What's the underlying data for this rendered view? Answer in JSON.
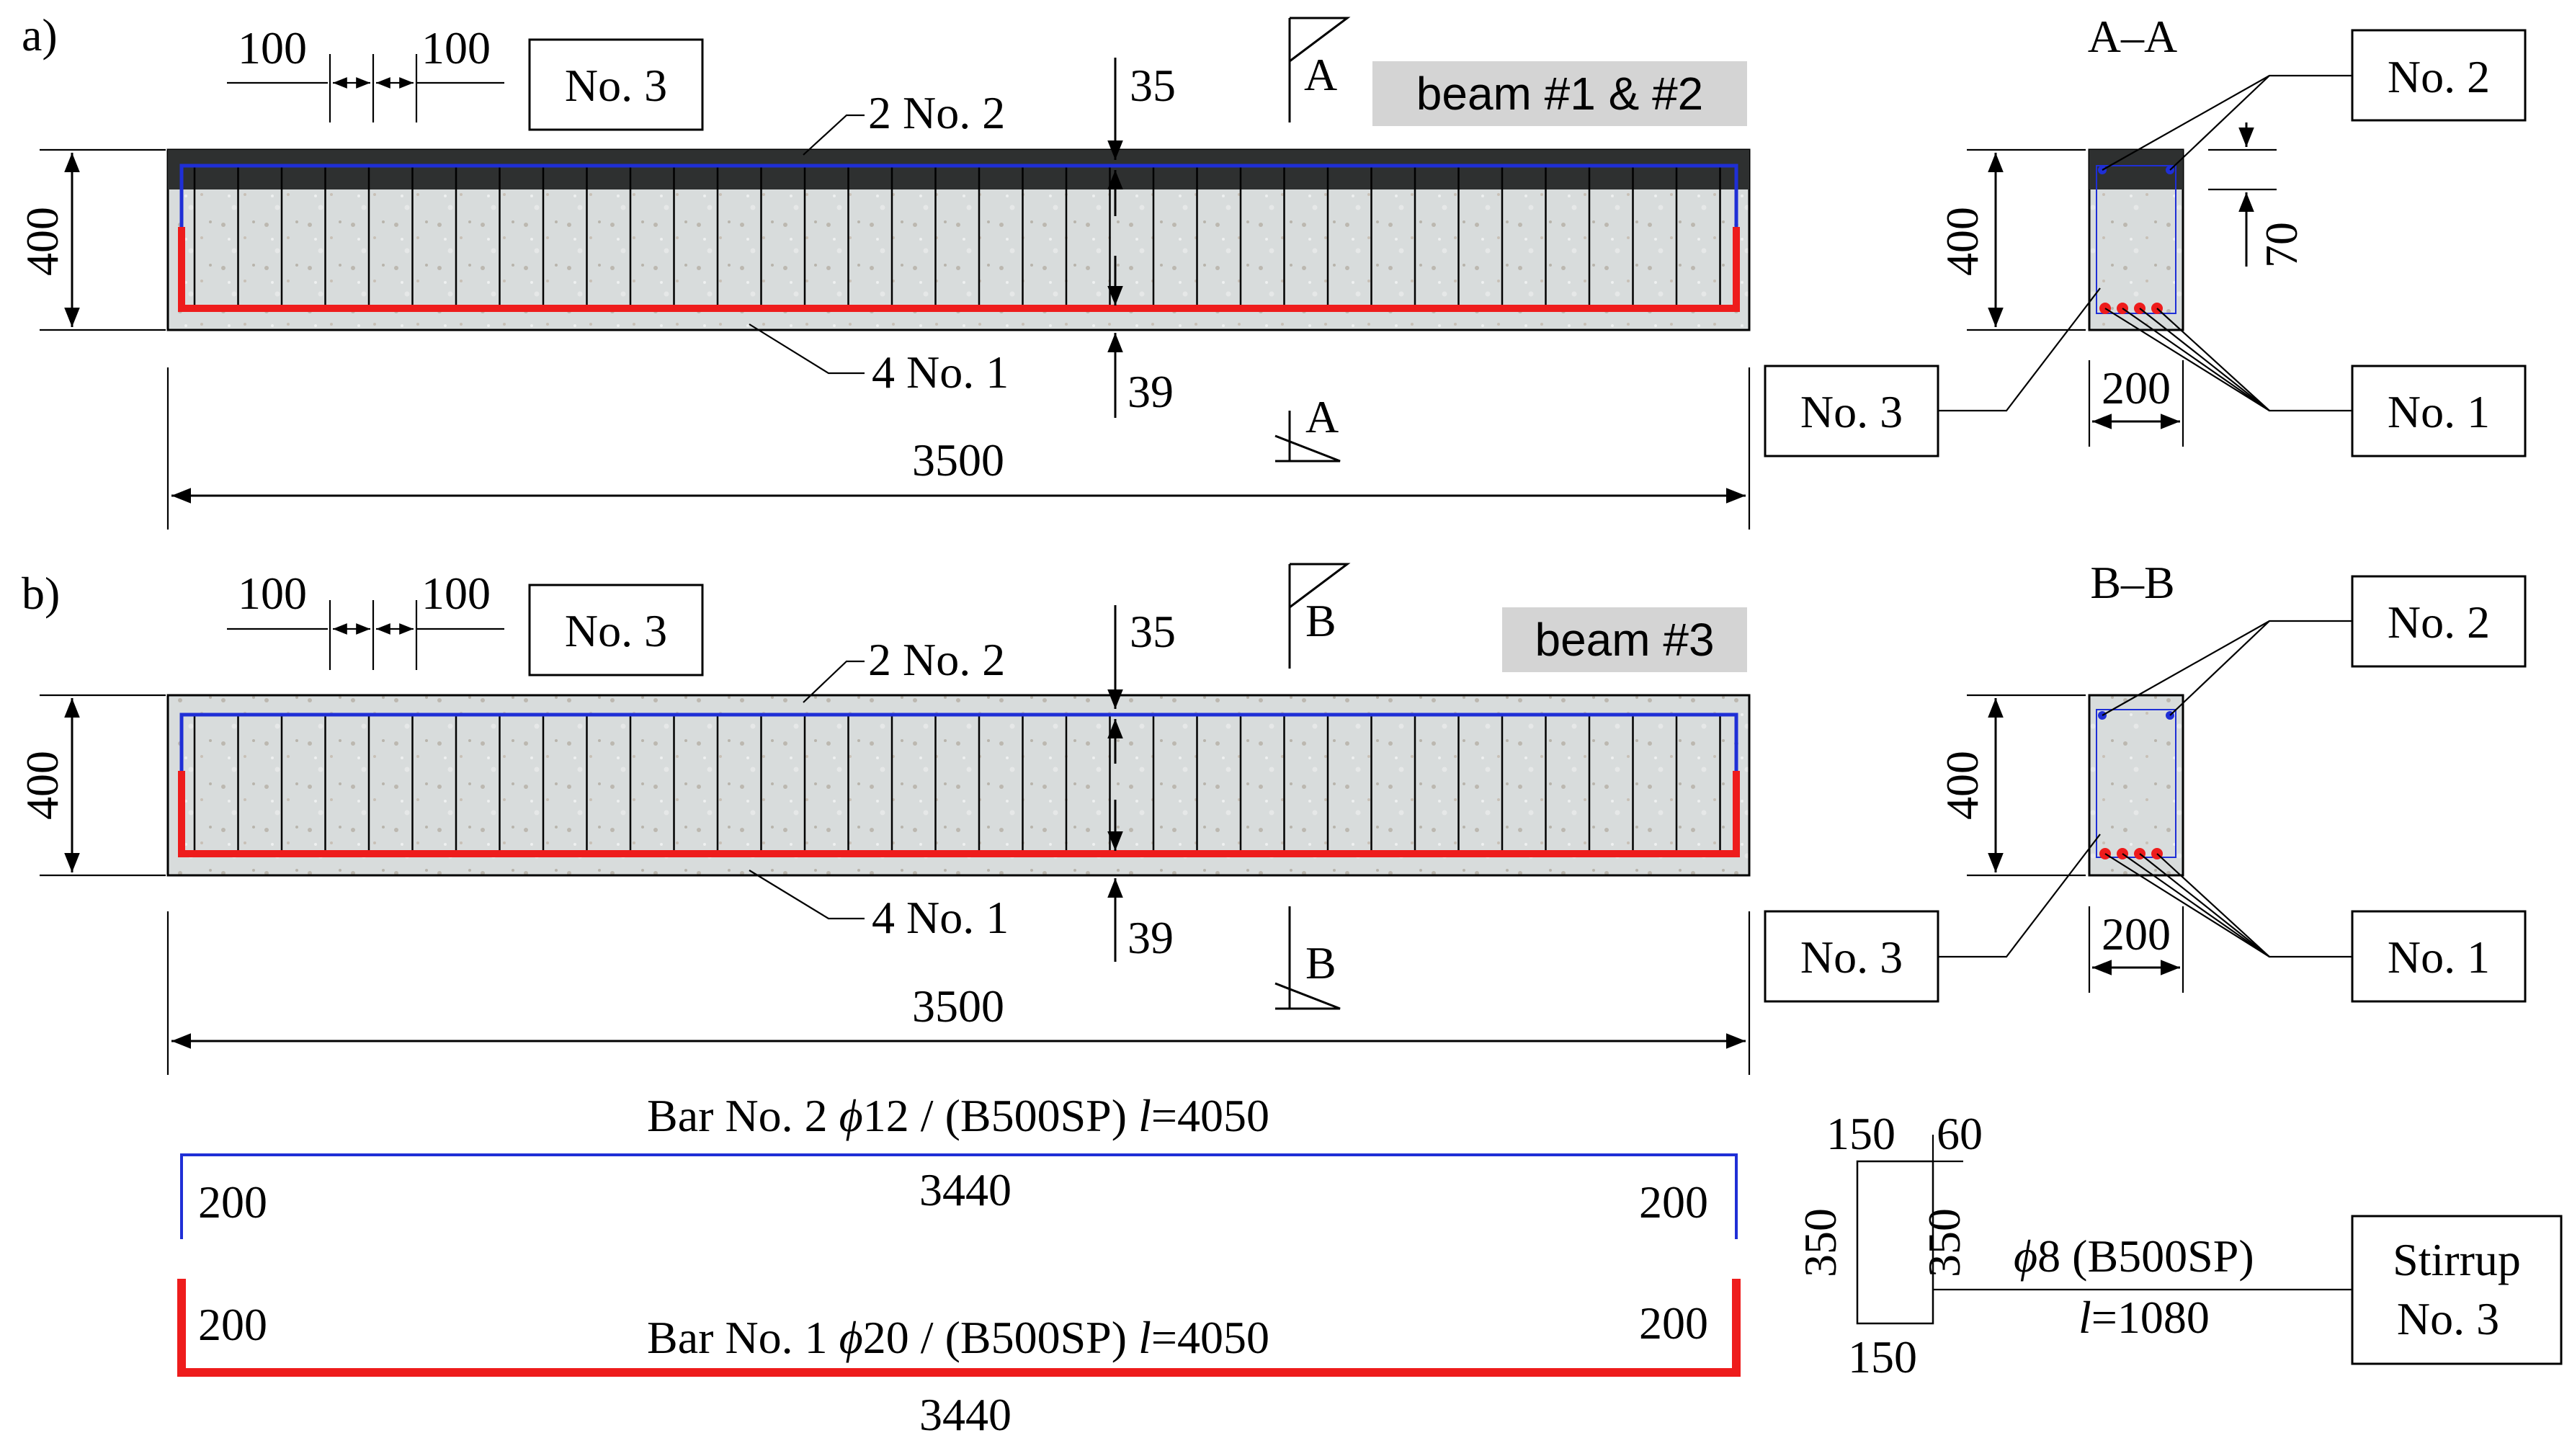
{
  "panel_a": {
    "label": "a)",
    "spacing_left": "100",
    "spacing_right": "100",
    "stirrup_box": "No. 3",
    "top_dim": "35",
    "bottom_dim": "39",
    "section_top": "A",
    "section_bottom": "A",
    "beam_tag": "beam #1 & #2",
    "top_bars": "2 No. 2",
    "bottom_bars": "4 No. 1",
    "height_dim": "400",
    "length_dim": "3500",
    "section_title": "A–A",
    "sec_no2": "No. 2",
    "sec_no3": "No. 3",
    "sec_no1": "No. 1",
    "sec_height": "400",
    "sec_width": "200",
    "sec_top_dim": "70"
  },
  "panel_b": {
    "label": "b)",
    "spacing_left": "100",
    "spacing_right": "100",
    "stirrup_box": "No. 3",
    "top_dim": "35",
    "bottom_dim": "39",
    "section_top": "B",
    "section_bottom": "B",
    "beam_tag": "beam #3",
    "top_bars": "2 No. 2",
    "bottom_bars": "4 No. 1",
    "height_dim": "400",
    "length_dim": "3500",
    "section_title": "B–B",
    "sec_no2": "No. 2",
    "sec_no3": "No. 3",
    "sec_no1": "No. 1",
    "sec_height": "400",
    "sec_width": "200"
  },
  "bars": {
    "no2_title_pre": "Bar No. 2  ",
    "no2_phi": "ϕ",
    "no2_title_mid": "12 / (B500SP) ",
    "no2_l": "l",
    "no2_title_post": "=4050",
    "no2_left": "200",
    "no2_middle": "3440",
    "no2_right": "200",
    "no1_title_pre": "Bar No. 1  ",
    "no1_phi": "ϕ",
    "no1_title_mid": "20 / (B500SP) ",
    "no1_l": "l",
    "no1_title_post": "=4050",
    "no1_left": "200",
    "no1_middle": "3440",
    "no1_right": "200"
  },
  "stirrup": {
    "top_left": "150",
    "top_right": "60",
    "left_height": "350",
    "right_height": "350",
    "bottom": "150",
    "phi": "ϕ",
    "spec": "8 (B500SP)",
    "l": "l",
    "length": "=1080",
    "label_line1": "Stirrup",
    "label_line2": "No. 3"
  },
  "colors": {
    "top_bar": "#1f2fd6",
    "bottom_bar": "#ee1c1c",
    "concrete": "#d8dcdc",
    "cfrp_layer": "#2e3030",
    "tag_bg": "#d4d4d4"
  }
}
